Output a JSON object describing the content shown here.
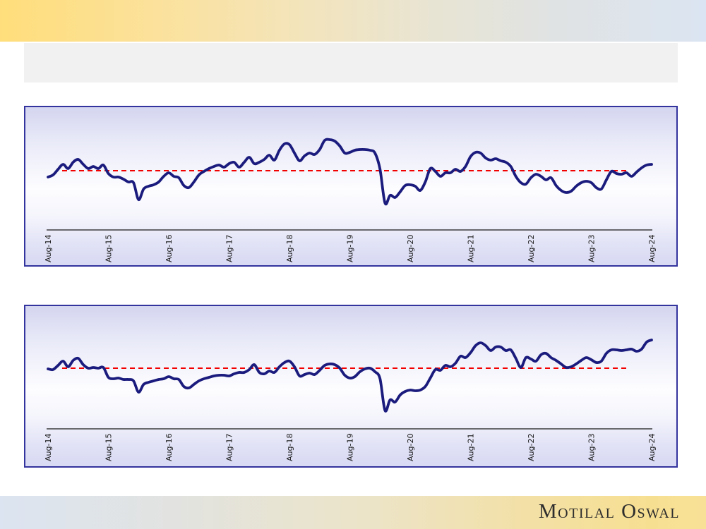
{
  "footer": {
    "logo_text": "Motilal Oswal"
  },
  "colors": {
    "header_band_left": "#ffde7b",
    "header_band_right": "#dbe4f2",
    "footer_band_left": "#dce4f1",
    "footer_band_right": "#f7df92",
    "title_box_fill": "#f1f1f1",
    "chart_border": "#34349e",
    "chart_bg_top": "#d4d5ef",
    "chart_bg_mid": "#fdfdff",
    "chart_bg_bottom": "#d8d9f3",
    "series_line": "#1a1b7d",
    "average_line": "#f20000",
    "axis_line": "#1a1a1a",
    "tick_label": "#1a1a1a"
  },
  "chart_data": [
    {
      "type": "line",
      "title": "",
      "xlabel": "",
      "ylabel": "",
      "x_interval": "monthly",
      "x_start_label": "Aug-14",
      "x_end_label": "Aug-24",
      "x_tick_labels": [
        "Aug-14",
        "Aug-15",
        "Aug-16",
        "Aug-17",
        "Aug-18",
        "Aug-19",
        "Aug-20",
        "Aug-21",
        "Aug-22",
        "Aug-23",
        "Aug-24"
      ],
      "months_per_tick": 12,
      "grid": false,
      "legend": "none",
      "ylim": [
        -65,
        55
      ],
      "baseline": {
        "value": 0,
        "style": "dashed",
        "color": "#f20000"
      },
      "series": [
        {
          "name": "deviation-from-average",
          "color": "#1a1b7d",
          "values": [
            -9,
            -6,
            2,
            9,
            3,
            12,
            16,
            9,
            3,
            6,
            3,
            8,
            -4,
            -9,
            -9,
            -12,
            -16,
            -17,
            -41,
            -26,
            -22,
            -20,
            -16,
            -8,
            -3,
            -8,
            -10,
            -21,
            -24,
            -16,
            -6,
            -1,
            3,
            6,
            8,
            5,
            10,
            12,
            5,
            12,
            19,
            10,
            12,
            16,
            22,
            15,
            29,
            38,
            37,
            25,
            14,
            21,
            25,
            23,
            30,
            43,
            44,
            42,
            35,
            25,
            26,
            29,
            30,
            30,
            29,
            25,
            2,
            -46,
            -35,
            -38,
            -30,
            -21,
            -20,
            -22,
            -28,
            -16,
            3,
            -1,
            -8,
            -3,
            -3,
            2,
            -1,
            6,
            20,
            26,
            25,
            18,
            15,
            17,
            14,
            12,
            6,
            -8,
            -17,
            -19,
            -10,
            -5,
            -8,
            -13,
            -10,
            -21,
            -28,
            -31,
            -29,
            -22,
            -17,
            -15,
            -17,
            -24,
            -26,
            -13,
            -1,
            -4,
            -5,
            -3,
            -8,
            -2,
            4,
            8,
            9
          ]
        }
      ]
    },
    {
      "type": "line",
      "title": "",
      "xlabel": "",
      "ylabel": "",
      "x_interval": "monthly",
      "x_start_label": "Aug-14",
      "x_end_label": "Aug-24",
      "x_tick_labels": [
        "Aug-14",
        "Aug-15",
        "Aug-16",
        "Aug-17",
        "Aug-18",
        "Aug-19",
        "Aug-20",
        "Aug-21",
        "Aug-22",
        "Aug-23",
        "Aug-24"
      ],
      "months_per_tick": 12,
      "grid": false,
      "legend": "none",
      "ylim": [
        -65,
        55
      ],
      "baseline": {
        "value": 0,
        "style": "dashed",
        "color": "#f20000"
      },
      "series": [
        {
          "name": "deviation-from-average",
          "color": "#1a1b7d",
          "values": [
            -1,
            -2,
            4,
            10,
            2,
            11,
            14,
            5,
            0,
            1,
            0,
            1,
            -13,
            -15,
            -14,
            -16,
            -16,
            -18,
            -34,
            -23,
            -20,
            -18,
            -16,
            -15,
            -12,
            -15,
            -16,
            -26,
            -28,
            -23,
            -18,
            -15,
            -13,
            -11,
            -10,
            -10,
            -11,
            -8,
            -6,
            -6,
            -2,
            5,
            -6,
            -8,
            -4,
            -6,
            2,
            8,
            10,
            2,
            -11,
            -9,
            -7,
            -9,
            -3,
            4,
            6,
            5,
            0,
            -10,
            -14,
            -12,
            -5,
            -1,
            0,
            -5,
            -15,
            -60,
            -45,
            -48,
            -38,
            -33,
            -31,
            -32,
            -31,
            -26,
            -14,
            -2,
            -3,
            4,
            2,
            7,
            17,
            15,
            22,
            32,
            36,
            32,
            25,
            30,
            30,
            25,
            26,
            14,
            1,
            15,
            13,
            10,
            19,
            21,
            15,
            11,
            6,
            1,
            2,
            6,
            11,
            15,
            12,
            8,
            10,
            21,
            26,
            26,
            25,
            26,
            27,
            24,
            27,
            37,
            40
          ]
        }
      ]
    }
  ]
}
